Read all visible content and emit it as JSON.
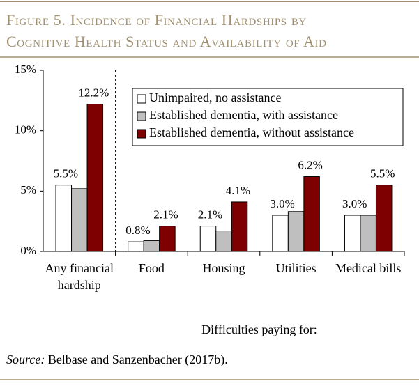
{
  "chart_data": {
    "type": "bar",
    "title": [
      "Figure 5. Incidence of Financial Hardships by",
      "Cognitive Health Status and Availability of Aid"
    ],
    "categories": [
      "Any financial hardship",
      "Food",
      "Housing",
      "Utilities",
      "Medical bills"
    ],
    "series": [
      {
        "name": "Unimpaired, no assistance",
        "color": "#ffffff",
        "values": [
          5.5,
          0.8,
          2.1,
          3.0,
          3.0
        ],
        "value_labels": [
          "5.5%",
          "0.8%",
          "2.1%",
          "3.0%",
          "3.0%"
        ]
      },
      {
        "name": "Established dementia, with assistance",
        "color": "#bfbfbf",
        "values": [
          5.2,
          0.9,
          1.7,
          3.3,
          3.0
        ]
      },
      {
        "name": "Established dementia, without assistance",
        "color": "#7f0000",
        "values": [
          12.2,
          2.1,
          4.1,
          6.2,
          5.5
        ],
        "value_labels": [
          "12.2%",
          "2.1%",
          "4.1%",
          "6.2%",
          "5.5%"
        ]
      }
    ],
    "ylim": [
      0,
      15
    ],
    "yticks": [
      {
        "value": 0,
        "label": "0%"
      },
      {
        "value": 5,
        "label": "5%"
      },
      {
        "value": 10,
        "label": "10%"
      },
      {
        "value": 15,
        "label": "15%"
      }
    ],
    "xlabel": "Difficulties paying for:",
    "legend": "top-right",
    "source": {
      "label": "Source:",
      "text": "Belbase and Sanzenbacher (2017b)."
    }
  }
}
